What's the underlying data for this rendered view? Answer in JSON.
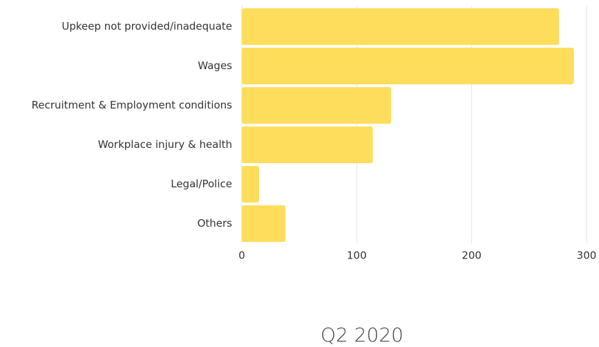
{
  "chart_data": {
    "type": "bar",
    "orientation": "horizontal",
    "title": "Q2 2020",
    "categories": [
      "Upkeep not provided/inadequate",
      "Wages",
      "Recruitment & Employment conditions",
      "Workplace injury & health",
      "Legal/Police",
      "Others"
    ],
    "values": [
      276,
      289,
      130,
      114,
      15,
      38
    ],
    "color": "#fedd5c",
    "xlim": [
      0,
      300
    ],
    "xticks": [
      0,
      100,
      200,
      300
    ],
    "grid": true
  }
}
